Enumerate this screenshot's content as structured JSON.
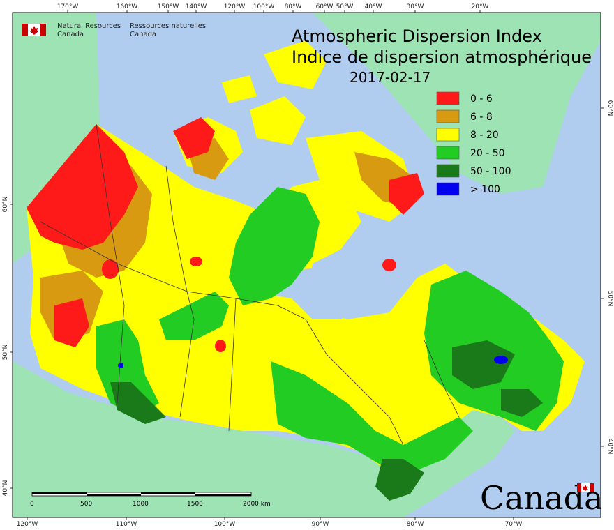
{
  "header": {
    "org_en_line1": "Natural Resources",
    "org_en_line2": "Canada",
    "org_fr_line1": "Ressources naturelles",
    "org_fr_line2": "Canada"
  },
  "title": {
    "en": "Atmospheric Dispersion Index",
    "fr": "Indice de dispersion atmosphérique",
    "date": "2017-02-17"
  },
  "legend": [
    {
      "label": "0 - 6",
      "color": "#ff1a1a"
    },
    {
      "label": "6 - 8",
      "color": "#d89a10"
    },
    {
      "label": "8 - 20",
      "color": "#ffff00"
    },
    {
      "label": "20 - 50",
      "color": "#22cc22"
    },
    {
      "label": "50 - 100",
      "color": "#1a7a1a"
    },
    {
      "label": "> 100",
      "color": "#0000ee"
    }
  ],
  "axes": {
    "top_ticks": [
      "170°W",
      "160°W",
      "150°W",
      "140°W",
      "120°W",
      "100°W",
      "80°W",
      "60°W",
      "50°W",
      "40°W",
      "30°W",
      "20°W"
    ],
    "bottom_ticks": [
      "120°W",
      "110°W",
      "100°W",
      "90°W",
      "80°W",
      "70°W"
    ],
    "left_ticks": [
      "60°N",
      "50°N",
      "40°N"
    ],
    "right_ticks": [
      "60°N",
      "50°N",
      "40°N"
    ]
  },
  "scale_bar": {
    "labels": [
      "0",
      "500",
      "1000",
      "1500",
      "2000 km"
    ]
  },
  "wordmark": "Canada",
  "colors": {
    "ocean": "#b0cdef",
    "foreign_land": "#9de3b4",
    "boundary": "#333333"
  }
}
